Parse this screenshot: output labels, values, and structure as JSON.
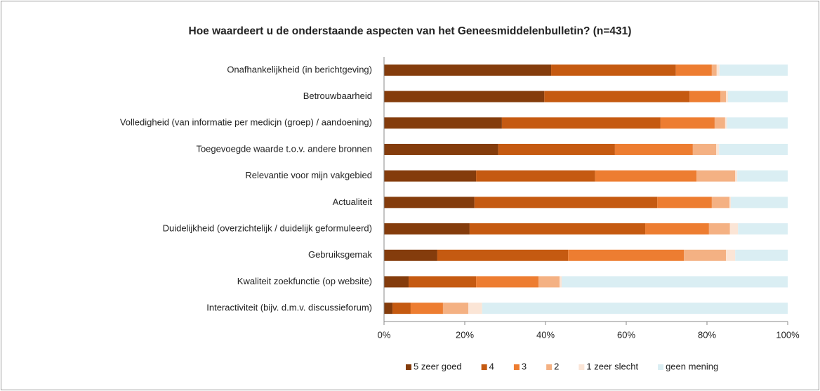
{
  "chart_data": {
    "type": "stacked_barh",
    "title": "Hoe waardeert u de onderstaande aspecten van het Geneesmiddelenbulletin? (n=431)",
    "categories": [
      "Onafhankelijkheid (in berichtgeving)",
      "Betrouwbaarheid",
      "Volledigheid (van informatie per medicjn (groep) / aandoening)",
      "Toegevoegde waarde t.o.v. andere bronnen",
      "Relevantie voor mijn vakgebied",
      "Actualiteit",
      "Duidelijkheid (overzichtelijk / duidelijk geformuleerd)",
      "Gebruiksgemak",
      "Kwaliteit zoekfunctie (op website)",
      "Interactiviteit (bijv. d.m.v. discussieforum)"
    ],
    "series": [
      {
        "name": "5 zeer goed",
        "color": "#843c0c",
        "values": [
          41.4,
          39.7,
          29.2,
          28.3,
          22.8,
          22.4,
          21.2,
          13.2,
          6.1,
          2.1
        ]
      },
      {
        "name": "4",
        "color": "#c55a11",
        "values": [
          30.9,
          36.0,
          39.3,
          28.9,
          29.5,
          45.3,
          43.5,
          32.4,
          16.7,
          4.5
        ]
      },
      {
        "name": "3",
        "color": "#ed7d31",
        "values": [
          8.9,
          7.6,
          13.4,
          19.3,
          25.1,
          13.5,
          15.8,
          28.7,
          15.5,
          8.0
        ]
      },
      {
        "name": "2",
        "color": "#f4b183",
        "values": [
          1.2,
          1.4,
          2.6,
          5.8,
          9.6,
          4.4,
          5.2,
          10.4,
          5.2,
          6.3
        ]
      },
      {
        "name": "1 zeer slecht",
        "color": "#fbe5d6",
        "values": [
          0.7,
          0.5,
          0.4,
          0.7,
          0.5,
          0.3,
          2.0,
          2.3,
          0.5,
          3.4
        ]
      },
      {
        "name": "geen mening",
        "color": "#daeef3",
        "values": [
          16.9,
          14.8,
          15.1,
          17.0,
          12.5,
          14.1,
          12.3,
          13.0,
          56.0,
          75.7
        ]
      }
    ],
    "xlim": [
      0,
      100
    ],
    "xticks": [
      {
        "value": 0,
        "label": "0%"
      },
      {
        "value": 20,
        "label": "20%"
      },
      {
        "value": 40,
        "label": "40%"
      },
      {
        "value": 60,
        "label": "60%"
      },
      {
        "value": 80,
        "label": "80%"
      },
      {
        "value": 100,
        "label": "100%"
      }
    ],
    "legend": "bottom"
  }
}
